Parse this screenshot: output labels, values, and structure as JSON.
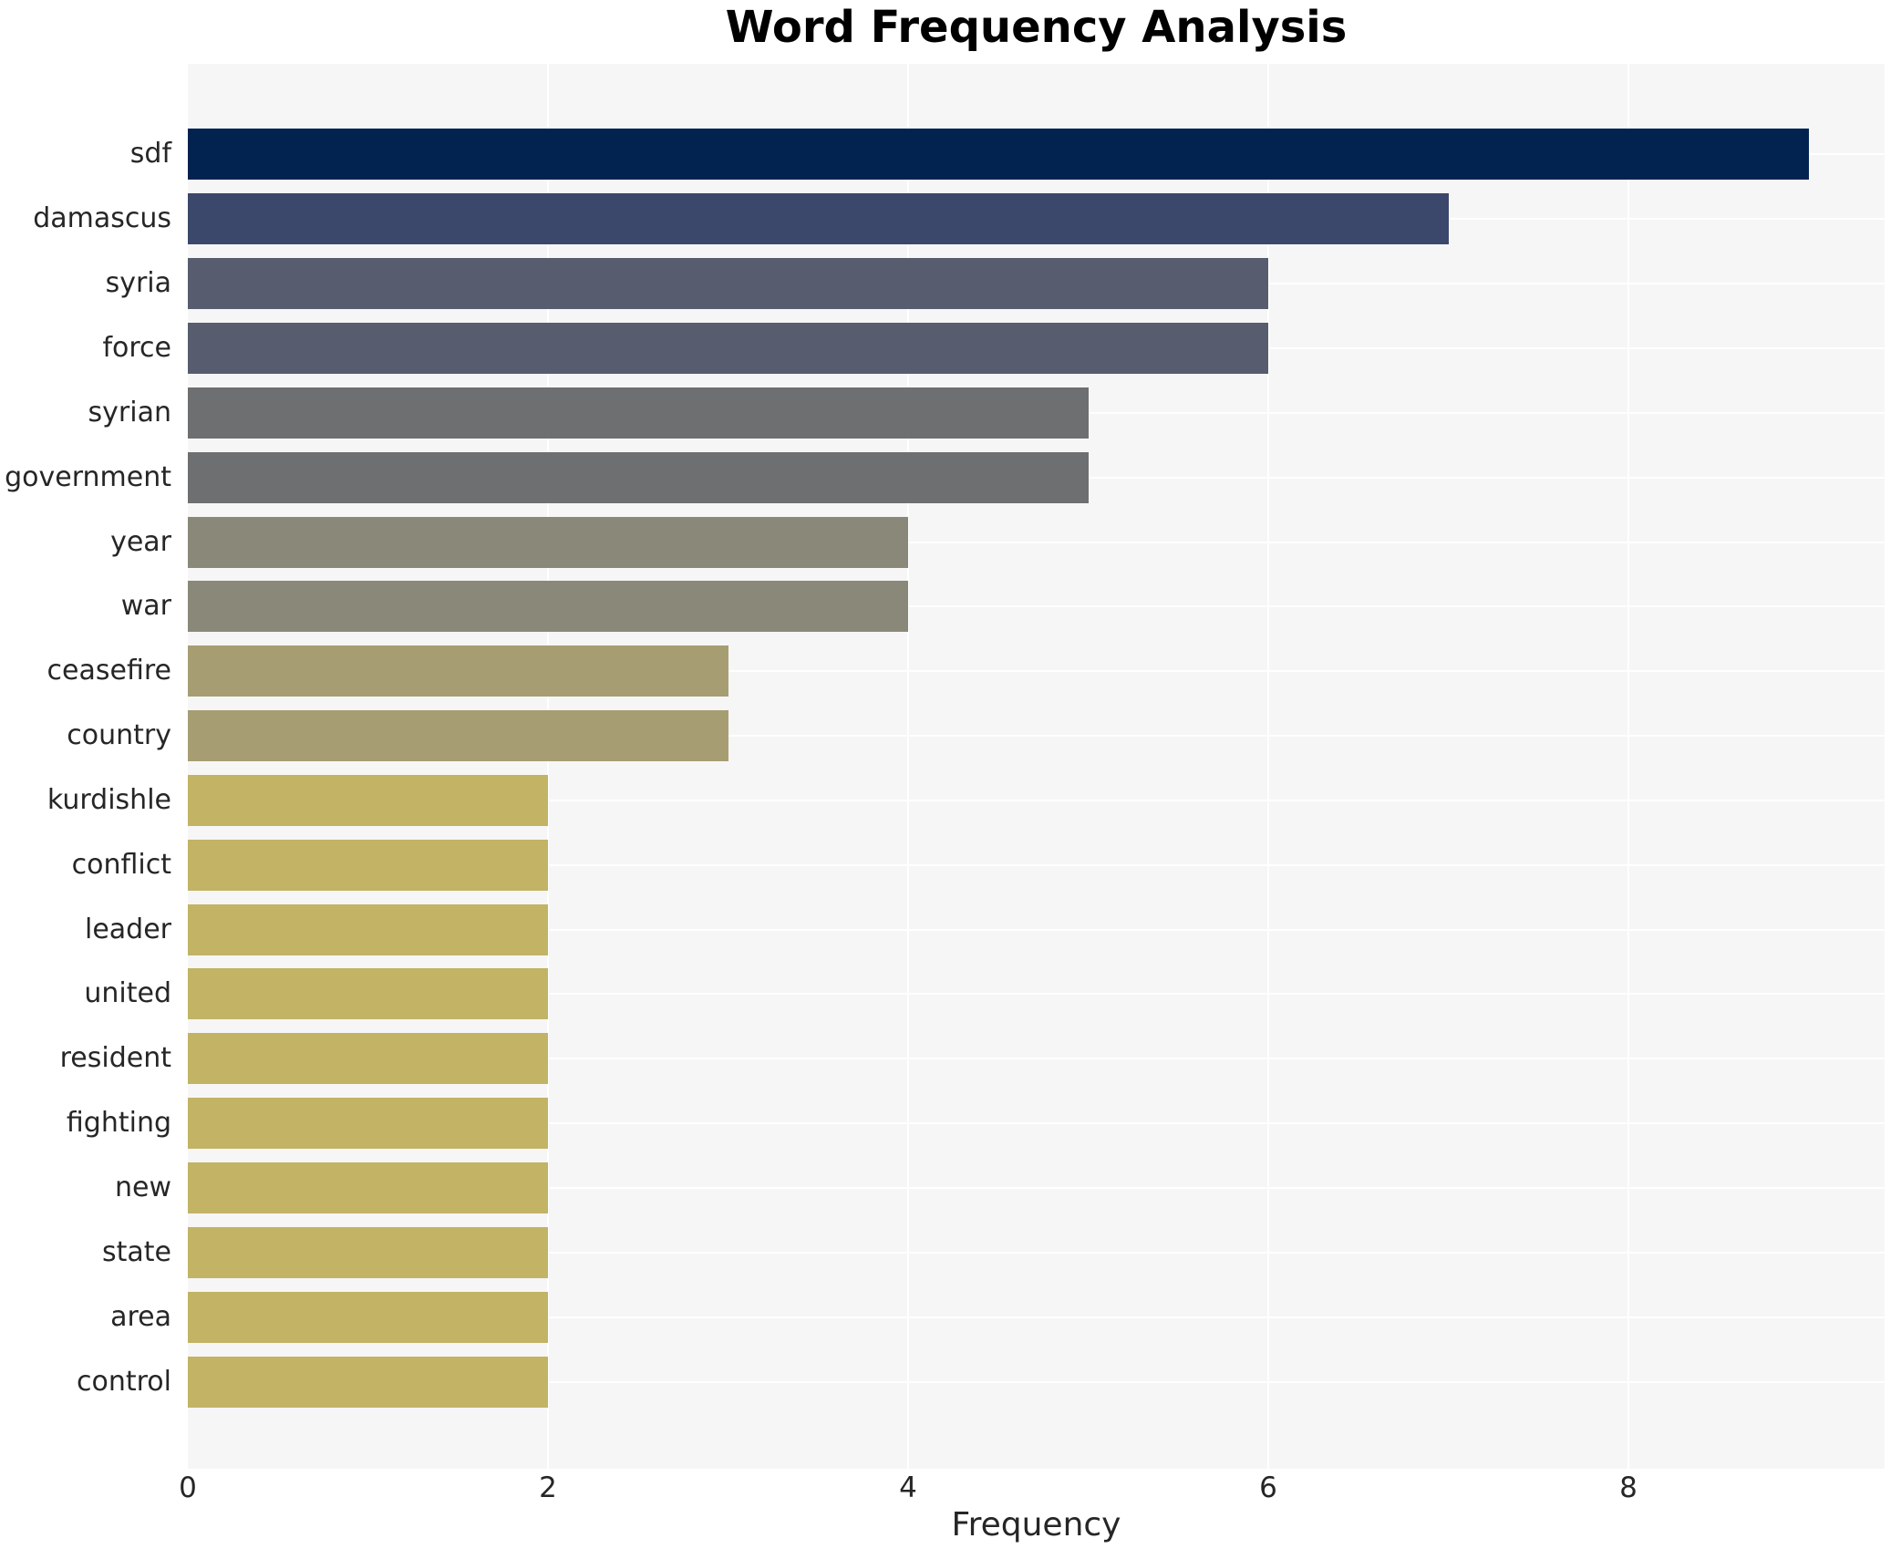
{
  "chart_data": {
    "type": "bar",
    "orientation": "horizontal",
    "title": "Word Frequency Analysis",
    "xlabel": "Frequency",
    "ylabel": "",
    "categories": [
      "sdf",
      "damascus",
      "syria",
      "force",
      "syrian",
      "government",
      "year",
      "war",
      "ceasefire",
      "country",
      "kurdishle",
      "conflict",
      "leader",
      "united",
      "resident",
      "fighting",
      "new",
      "state",
      "area",
      "control"
    ],
    "values": [
      9,
      7,
      6,
      6,
      5,
      5,
      4,
      4,
      3,
      3,
      2,
      2,
      2,
      2,
      2,
      2,
      2,
      2,
      2,
      2
    ],
    "bar_colors": [
      "#022350",
      "#3c486b",
      "#575d6e",
      "#575d6e",
      "#6e6f71",
      "#6e6f71",
      "#8a8878",
      "#8a8878",
      "#a69e72",
      "#a69e72",
      "#c2b365",
      "#c2b365",
      "#c2b365",
      "#c2b365",
      "#c2b365",
      "#c2b365",
      "#c2b365",
      "#c2b365",
      "#c2b365",
      "#c2b365"
    ],
    "xticks": [
      0,
      2,
      4,
      6,
      8
    ],
    "xlim": [
      0,
      9.42
    ],
    "grid": true,
    "legend": "none",
    "plot_background": "#f6f6f7",
    "gridline_color": "#ffffff",
    "text_color": "#262626",
    "title_color": "#000000"
  }
}
